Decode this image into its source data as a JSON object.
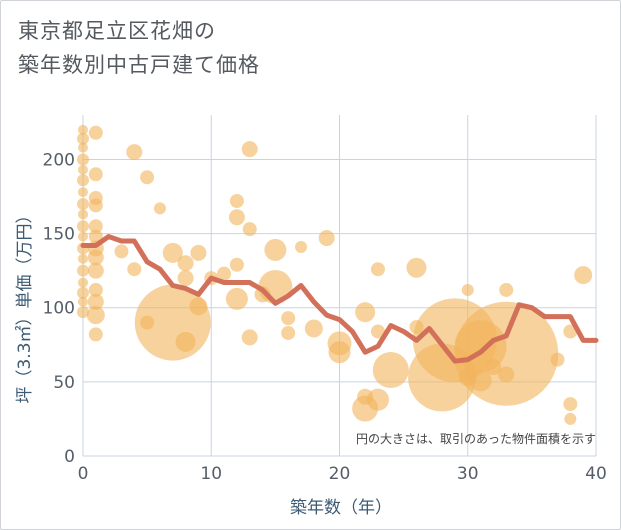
{
  "chart_data": {
    "type": "scatter",
    "title": "東京都足立区花畑の\n築年数別中古戸建て価格",
    "xlabel": "築年数（年）",
    "ylabel": "坪（3.3㎡）単価（万円）",
    "note": "円の大きさは、取引のあった物件面積を示す",
    "xlim": [
      0,
      40
    ],
    "ylim": [
      0,
      230
    ],
    "x_ticks": [
      "0",
      "10",
      "20",
      "30",
      "40"
    ],
    "y_ticks": [
      "0",
      "50",
      "100",
      "150",
      "200"
    ],
    "grid": true,
    "colors": {
      "bubble": "#f2b45c",
      "line": "#d2705a",
      "grid": "#c8d4e2"
    },
    "bubbles": [
      {
        "x": 0,
        "y": 220,
        "s": 5
      },
      {
        "x": 0,
        "y": 214,
        "s": 6
      },
      {
        "x": 0,
        "y": 208,
        "s": 5
      },
      {
        "x": 0,
        "y": 200,
        "s": 6
      },
      {
        "x": 0,
        "y": 193,
        "s": 5
      },
      {
        "x": 0,
        "y": 186,
        "s": 6
      },
      {
        "x": 0,
        "y": 178,
        "s": 5
      },
      {
        "x": 0,
        "y": 170,
        "s": 6
      },
      {
        "x": 0,
        "y": 163,
        "s": 5
      },
      {
        "x": 0,
        "y": 155,
        "s": 6
      },
      {
        "x": 0,
        "y": 148,
        "s": 5
      },
      {
        "x": 0,
        "y": 140,
        "s": 6
      },
      {
        "x": 0,
        "y": 133,
        "s": 5
      },
      {
        "x": 0,
        "y": 125,
        "s": 6
      },
      {
        "x": 0,
        "y": 117,
        "s": 5
      },
      {
        "x": 0,
        "y": 110,
        "s": 6
      },
      {
        "x": 0,
        "y": 104,
        "s": 5
      },
      {
        "x": 0,
        "y": 97,
        "s": 6
      },
      {
        "x": 1,
        "y": 218,
        "s": 7
      },
      {
        "x": 1,
        "y": 190,
        "s": 7
      },
      {
        "x": 1,
        "y": 174,
        "s": 7
      },
      {
        "x": 1,
        "y": 169,
        "s": 7
      },
      {
        "x": 1,
        "y": 155,
        "s": 7
      },
      {
        "x": 1,
        "y": 148,
        "s": 7
      },
      {
        "x": 1,
        "y": 140,
        "s": 8
      },
      {
        "x": 1,
        "y": 134,
        "s": 8
      },
      {
        "x": 1,
        "y": 125,
        "s": 8
      },
      {
        "x": 1,
        "y": 112,
        "s": 7
      },
      {
        "x": 1,
        "y": 104,
        "s": 8
      },
      {
        "x": 1,
        "y": 95,
        "s": 9
      },
      {
        "x": 1,
        "y": 82,
        "s": 7
      },
      {
        "x": 3,
        "y": 138,
        "s": 7
      },
      {
        "x": 4,
        "y": 205,
        "s": 8
      },
      {
        "x": 4,
        "y": 126,
        "s": 7
      },
      {
        "x": 5,
        "y": 188,
        "s": 7
      },
      {
        "x": 5,
        "y": 90,
        "s": 7
      },
      {
        "x": 6,
        "y": 167,
        "s": 6
      },
      {
        "x": 7,
        "y": 137,
        "s": 10
      },
      {
        "x": 7,
        "y": 90,
        "s": 38
      },
      {
        "x": 8,
        "y": 130,
        "s": 8
      },
      {
        "x": 8,
        "y": 120,
        "s": 8
      },
      {
        "x": 8,
        "y": 77,
        "s": 10
      },
      {
        "x": 9,
        "y": 137,
        "s": 8
      },
      {
        "x": 9,
        "y": 101,
        "s": 9
      },
      {
        "x": 10,
        "y": 120,
        "s": 7
      },
      {
        "x": 11,
        "y": 123,
        "s": 7
      },
      {
        "x": 12,
        "y": 172,
        "s": 7
      },
      {
        "x": 12,
        "y": 161,
        "s": 8
      },
      {
        "x": 12,
        "y": 129,
        "s": 7
      },
      {
        "x": 12,
        "y": 106,
        "s": 11
      },
      {
        "x": 13,
        "y": 207,
        "s": 8
      },
      {
        "x": 13,
        "y": 153,
        "s": 7
      },
      {
        "x": 13,
        "y": 80,
        "s": 8
      },
      {
        "x": 14,
        "y": 109,
        "s": 8
      },
      {
        "x": 15,
        "y": 139,
        "s": 11
      },
      {
        "x": 15,
        "y": 114,
        "s": 17
      },
      {
        "x": 16,
        "y": 93,
        "s": 7
      },
      {
        "x": 16,
        "y": 83,
        "s": 7
      },
      {
        "x": 17,
        "y": 141,
        "s": 6
      },
      {
        "x": 18,
        "y": 86,
        "s": 9
      },
      {
        "x": 19,
        "y": 147,
        "s": 8
      },
      {
        "x": 20,
        "y": 76,
        "s": 12
      },
      {
        "x": 20,
        "y": 70,
        "s": 11
      },
      {
        "x": 22,
        "y": 97,
        "s": 10
      },
      {
        "x": 22,
        "y": 32,
        "s": 13
      },
      {
        "x": 22,
        "y": 40,
        "s": 8
      },
      {
        "x": 23,
        "y": 126,
        "s": 7
      },
      {
        "x": 23,
        "y": 84,
        "s": 7
      },
      {
        "x": 23,
        "y": 38,
        "s": 11
      },
      {
        "x": 24,
        "y": 58,
        "s": 18
      },
      {
        "x": 26,
        "y": 127,
        "s": 10
      },
      {
        "x": 26,
        "y": 87,
        "s": 7
      },
      {
        "x": 28,
        "y": 53,
        "s": 34
      },
      {
        "x": 29,
        "y": 78,
        "s": 42
      },
      {
        "x": 30,
        "y": 112,
        "s": 6
      },
      {
        "x": 30,
        "y": 53,
        "s": 9
      },
      {
        "x": 31,
        "y": 51,
        "s": 11
      },
      {
        "x": 31,
        "y": 74,
        "s": 26
      },
      {
        "x": 32,
        "y": 60,
        "s": 8
      },
      {
        "x": 33,
        "y": 112,
        "s": 7
      },
      {
        "x": 33,
        "y": 69,
        "s": 52
      },
      {
        "x": 33,
        "y": 55,
        "s": 8
      },
      {
        "x": 37,
        "y": 65,
        "s": 7
      },
      {
        "x": 38,
        "y": 84,
        "s": 7
      },
      {
        "x": 38,
        "y": 35,
        "s": 7
      },
      {
        "x": 38,
        "y": 25,
        "s": 6
      },
      {
        "x": 39,
        "y": 122,
        "s": 9
      }
    ],
    "series": [
      {
        "x": [
          0,
          1,
          2,
          3,
          4,
          5,
          6,
          7,
          8,
          9,
          10,
          11,
          12,
          13,
          14,
          15,
          16,
          17,
          18,
          19,
          20,
          21,
          22,
          23,
          24,
          25,
          26,
          27,
          28,
          29,
          30,
          31,
          32,
          33,
          34,
          35,
          36,
          37,
          38,
          39,
          40
        ],
        "values": [
          142,
          142,
          148,
          145,
          145,
          131,
          126,
          115,
          113,
          109,
          120,
          117,
          117,
          117,
          112,
          103,
          108,
          115,
          104,
          95,
          92,
          84,
          70,
          74,
          88,
          84,
          78,
          86,
          75,
          64,
          65,
          70,
          78,
          81,
          102,
          100,
          94,
          94,
          94,
          78,
          78
        ]
      }
    ]
  }
}
